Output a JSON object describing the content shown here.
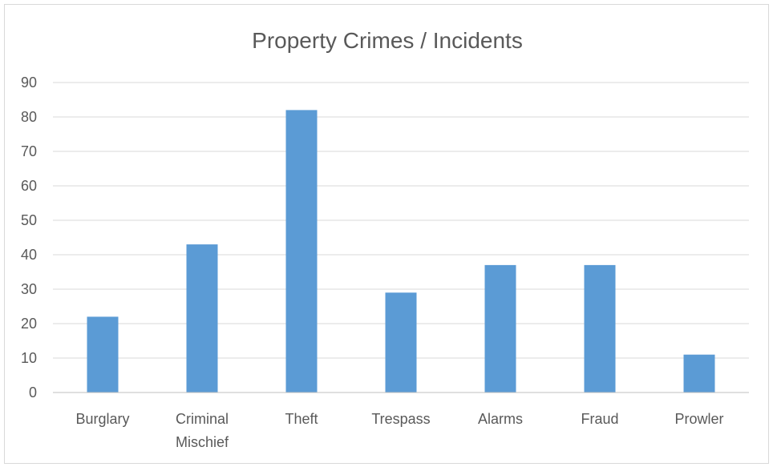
{
  "chart_data": {
    "type": "bar",
    "title": "Property Crimes / Incidents",
    "categories": [
      [
        "Burglary"
      ],
      [
        "Criminal",
        "Mischief"
      ],
      [
        "Theft"
      ],
      [
        "Trespass"
      ],
      [
        "Alarms"
      ],
      [
        "Fraud"
      ],
      [
        "Prowler"
      ]
    ],
    "values": [
      22,
      43,
      82,
      29,
      37,
      37,
      11
    ],
    "ylim": [
      0,
      90
    ],
    "yticks": [
      0,
      10,
      20,
      30,
      40,
      50,
      60,
      70,
      80,
      90
    ],
    "grid": true,
    "legend": "none",
    "bar_color": "#5b9bd5"
  }
}
